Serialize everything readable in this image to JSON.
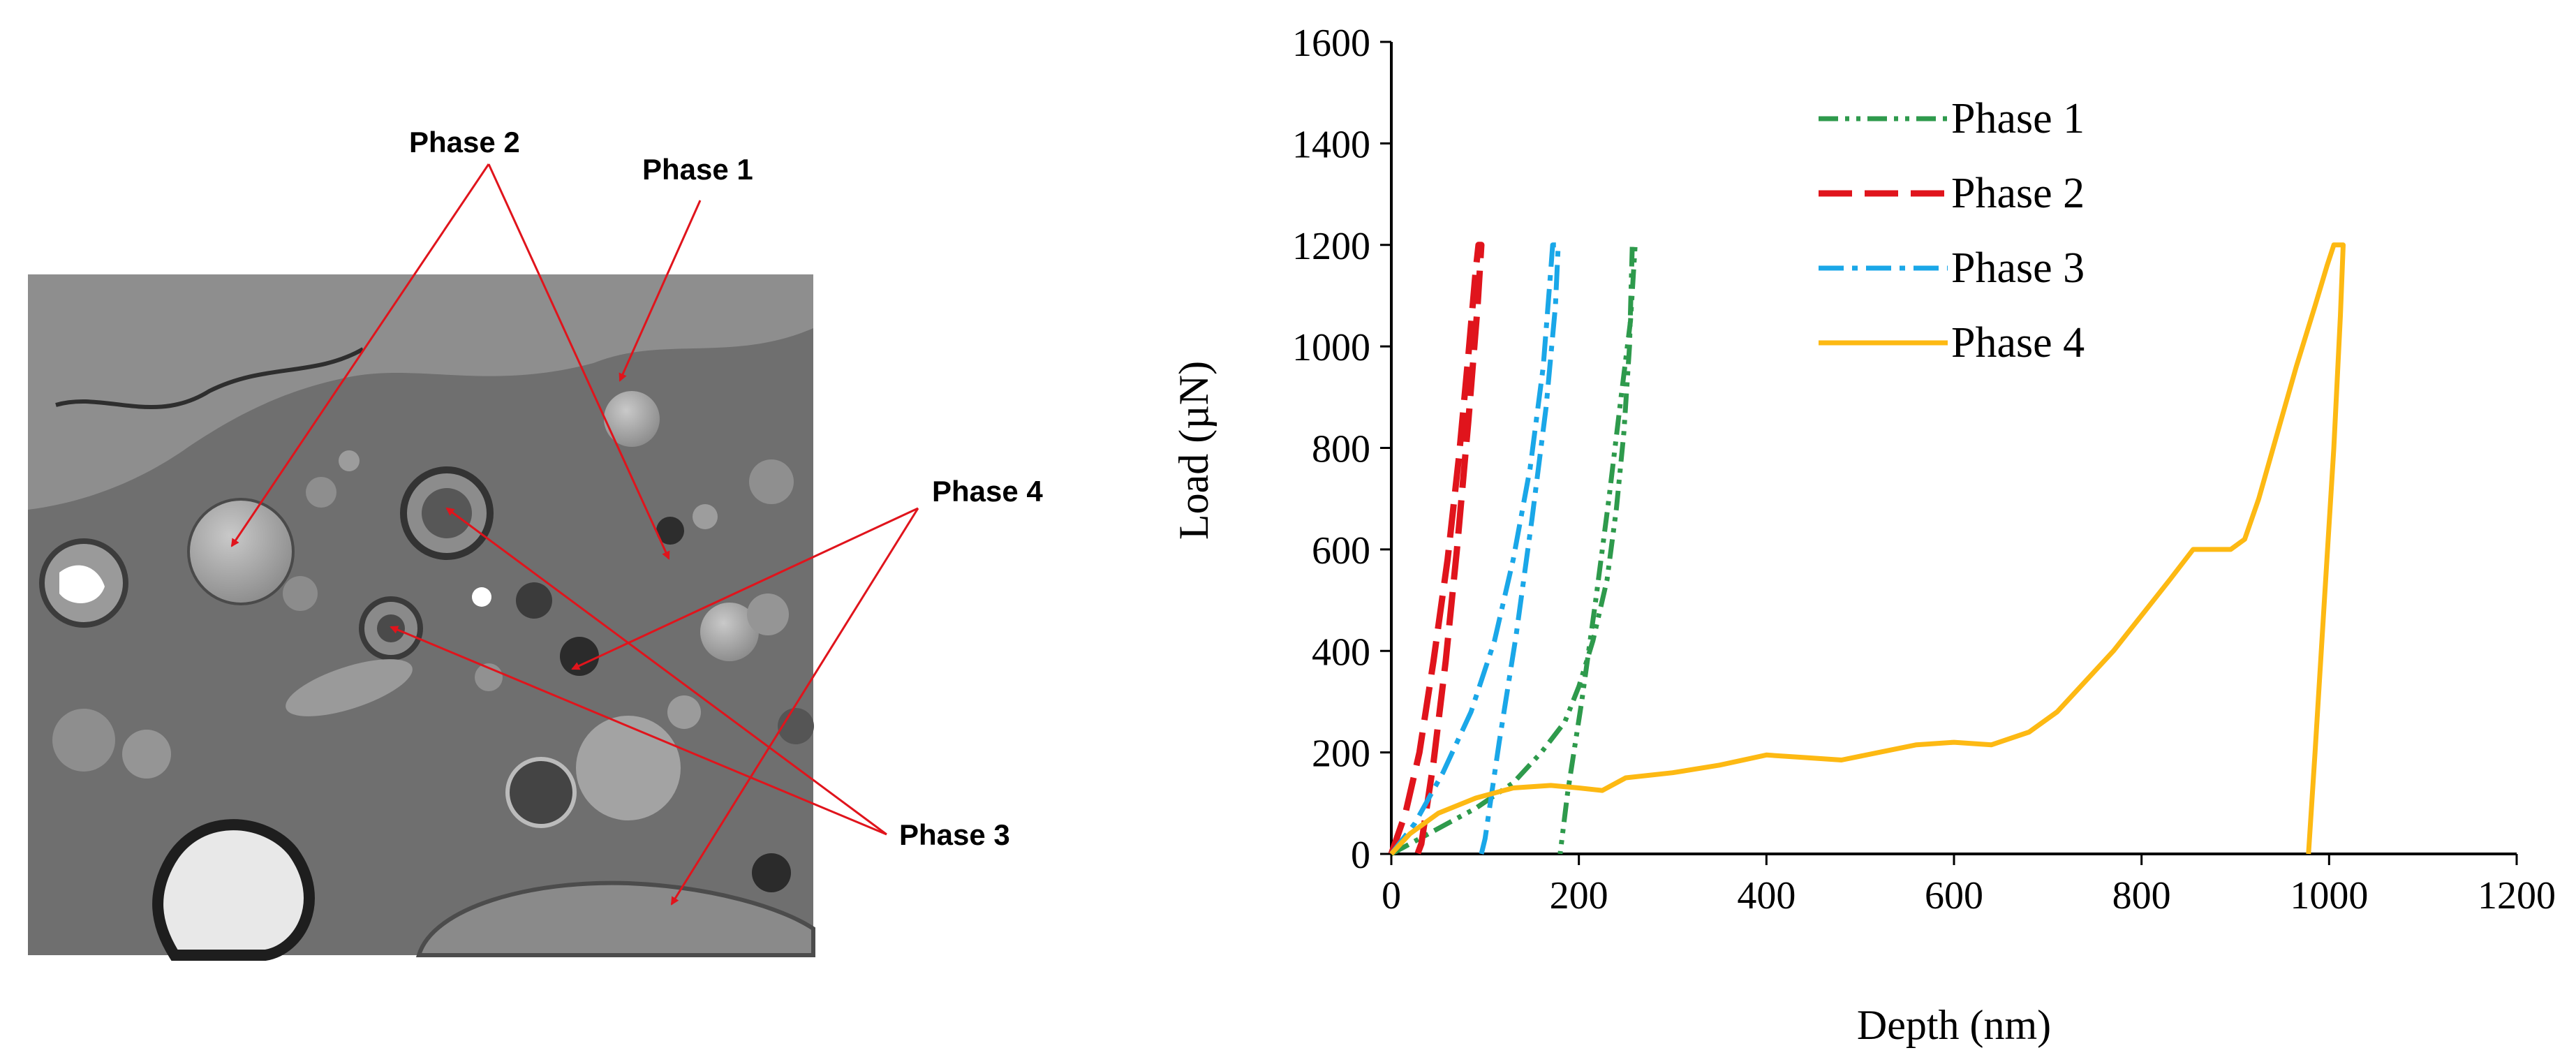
{
  "micrograph": {
    "labels": [
      {
        "id": "phase2",
        "text": "Phase 2"
      },
      {
        "id": "phase1",
        "text": "Phase 1"
      },
      {
        "id": "phase4",
        "text": "Phase 4"
      },
      {
        "id": "phase3",
        "text": "Phase 3"
      }
    ],
    "arrow_color": "#e0141c"
  },
  "chart_data": {
    "type": "line",
    "title": "",
    "xlabel": "Depth (nm)",
    "ylabel": "Load (µN)",
    "xlim": [
      0,
      1200
    ],
    "ylim": [
      0,
      1600
    ],
    "xticks": [
      0,
      200,
      400,
      600,
      800,
      1000,
      1200
    ],
    "yticks": [
      0,
      200,
      400,
      600,
      800,
      1000,
      1200,
      1400,
      1600
    ],
    "grid": false,
    "legend_position": "top-center",
    "series": [
      {
        "name": "Phase 1",
        "color": "#2e9a4c",
        "dash": "dash-dot-dot",
        "points": [
          [
            0,
            0
          ],
          [
            40,
            40
          ],
          [
            90,
            90
          ],
          [
            130,
            140
          ],
          [
            160,
            200
          ],
          [
            185,
            260
          ],
          [
            200,
            330
          ],
          [
            215,
            420
          ],
          [
            230,
            540
          ],
          [
            240,
            680
          ],
          [
            248,
            830
          ],
          [
            254,
            1000
          ],
          [
            257,
            1200
          ],
          [
            260,
            1200
          ],
          [
            255,
            1050
          ],
          [
            245,
            900
          ],
          [
            232,
            700
          ],
          [
            218,
            500
          ],
          [
            203,
            300
          ],
          [
            188,
            120
          ],
          [
            180,
            0
          ]
        ]
      },
      {
        "name": "Phase 2",
        "color": "#e0141c",
        "dash": "long-dash",
        "points": [
          [
            0,
            0
          ],
          [
            15,
            80
          ],
          [
            30,
            200
          ],
          [
            45,
            380
          ],
          [
            60,
            580
          ],
          [
            72,
            780
          ],
          [
            82,
            980
          ],
          [
            90,
            1150
          ],
          [
            93,
            1200
          ],
          [
            96,
            1200
          ],
          [
            92,
            1080
          ],
          [
            82,
            850
          ],
          [
            70,
            600
          ],
          [
            58,
            380
          ],
          [
            45,
            180
          ],
          [
            32,
            20
          ],
          [
            28,
            0
          ]
        ]
      },
      {
        "name": "Phase 3",
        "color": "#1aa7e8",
        "dash": "dash-dot",
        "points": [
          [
            0,
            0
          ],
          [
            25,
            60
          ],
          [
            55,
            160
          ],
          [
            85,
            280
          ],
          [
            110,
            420
          ],
          [
            130,
            580
          ],
          [
            148,
            760
          ],
          [
            162,
            960
          ],
          [
            170,
            1150
          ],
          [
            172,
            1200
          ],
          [
            178,
            1200
          ],
          [
            175,
            1080
          ],
          [
            165,
            880
          ],
          [
            150,
            660
          ],
          [
            133,
            430
          ],
          [
            115,
            220
          ],
          [
            100,
            30
          ],
          [
            96,
            0
          ]
        ]
      },
      {
        "name": "Phase 4",
        "color": "#fdb913",
        "dash": "solid",
        "points": [
          [
            0,
            0
          ],
          [
            20,
            40
          ],
          [
            50,
            80
          ],
          [
            90,
            110
          ],
          [
            130,
            130
          ],
          [
            170,
            135
          ],
          [
            200,
            130
          ],
          [
            225,
            125
          ],
          [
            250,
            150
          ],
          [
            300,
            160
          ],
          [
            350,
            175
          ],
          [
            400,
            195
          ],
          [
            440,
            190
          ],
          [
            480,
            185
          ],
          [
            520,
            200
          ],
          [
            560,
            215
          ],
          [
            600,
            220
          ],
          [
            640,
            215
          ],
          [
            680,
            240
          ],
          [
            710,
            280
          ],
          [
            740,
            340
          ],
          [
            770,
            400
          ],
          [
            800,
            470
          ],
          [
            830,
            540
          ],
          [
            855,
            600
          ],
          [
            875,
            600
          ],
          [
            895,
            600
          ],
          [
            910,
            620
          ],
          [
            925,
            700
          ],
          [
            945,
            830
          ],
          [
            965,
            960
          ],
          [
            985,
            1080
          ],
          [
            998,
            1160
          ],
          [
            1005,
            1200
          ],
          [
            1015,
            1200
          ],
          [
            1012,
            1060
          ],
          [
            1005,
            800
          ],
          [
            995,
            500
          ],
          [
            985,
            200
          ],
          [
            978,
            0
          ]
        ]
      }
    ]
  }
}
